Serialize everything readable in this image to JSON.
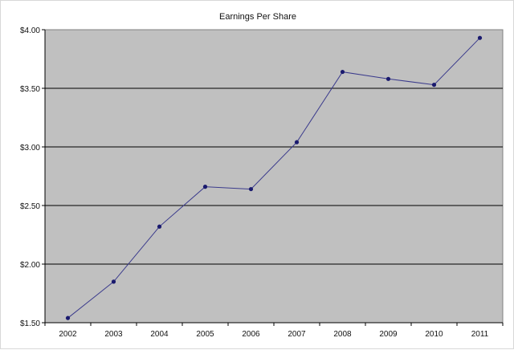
{
  "chart_data": {
    "type": "line",
    "title": "Earnings Per Share",
    "xlabel": "",
    "ylabel": "",
    "categories": [
      "2002",
      "2003",
      "2004",
      "2005",
      "2006",
      "2007",
      "2008",
      "2009",
      "2010",
      "2011"
    ],
    "series": [
      {
        "values": [
          1.54,
          1.85,
          2.32,
          2.66,
          2.64,
          3.04,
          3.64,
          3.58,
          3.53,
          3.93
        ]
      }
    ],
    "ylim": [
      1.5,
      4.0
    ],
    "yticks": [
      1.5,
      2.0,
      2.5,
      3.0,
      3.5,
      4.0
    ],
    "ytick_labels": [
      "$1.50",
      "$2.00",
      "$2.50",
      "$3.00",
      "$3.50",
      "$4.00"
    ],
    "grid": true,
    "legend": "none",
    "colors": {
      "plot_background": "#c0c0c0",
      "line": "#3a3a8c",
      "marker": "#1a1a6e",
      "gridline": "#000000"
    }
  }
}
